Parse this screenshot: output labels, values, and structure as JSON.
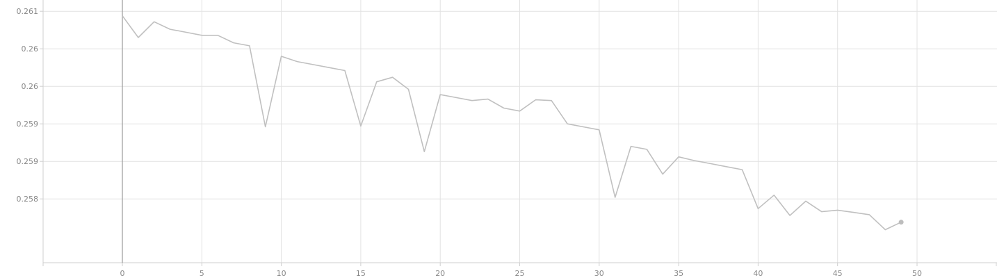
{
  "chart_data": {
    "type": "line",
    "title": "",
    "xlabel": "",
    "ylabel": "",
    "xlim": [
      -5,
      55
    ],
    "ylim": [
      0.25765,
      0.26115
    ],
    "grid": true,
    "x_ticks": [
      0,
      5,
      10,
      15,
      20,
      25,
      30,
      35,
      40,
      45,
      50
    ],
    "y_ticks": [
      {
        "value": 0.261,
        "label": "0.261"
      },
      {
        "value": 0.2605,
        "label": "0.26"
      },
      {
        "value": 0.26,
        "label": "0.26"
      },
      {
        "value": 0.2595,
        "label": "0.259"
      },
      {
        "value": 0.259,
        "label": "0.259"
      },
      {
        "value": 0.2585,
        "label": "0.258"
      }
    ],
    "series": [
      {
        "color": "#c0c0c0",
        "x": [
          0,
          1,
          2,
          3,
          4,
          5,
          6,
          7,
          8,
          9,
          10,
          11,
          12,
          13,
          14,
          15,
          16,
          17,
          18,
          19,
          20,
          21,
          22,
          23,
          24,
          25,
          26,
          27,
          28,
          29,
          30,
          31,
          32,
          33,
          34,
          35,
          36,
          37,
          38,
          39,
          40,
          41,
          42,
          43,
          44,
          45,
          46,
          47,
          48,
          49
        ],
        "y": [
          0.26094,
          0.26065,
          0.26086,
          0.26076,
          0.26072,
          0.26068,
          0.26068,
          0.26058,
          0.26054,
          0.25946,
          0.2604,
          0.26033,
          0.26029,
          0.26025,
          0.26021,
          0.25947,
          0.26006,
          0.26012,
          0.25996,
          0.25913,
          0.25989,
          0.25985,
          0.25981,
          0.25983,
          0.25971,
          0.25967,
          0.25982,
          0.25981,
          0.2595,
          0.25946,
          0.25942,
          0.25852,
          0.2592,
          0.25916,
          0.25883,
          0.25906,
          0.25901,
          0.25897,
          0.25893,
          0.25889,
          0.25837,
          0.25855,
          0.25828,
          0.25847,
          0.25833,
          0.25835,
          0.25832,
          0.25829,
          0.25809,
          0.25819
        ]
      }
    ]
  }
}
